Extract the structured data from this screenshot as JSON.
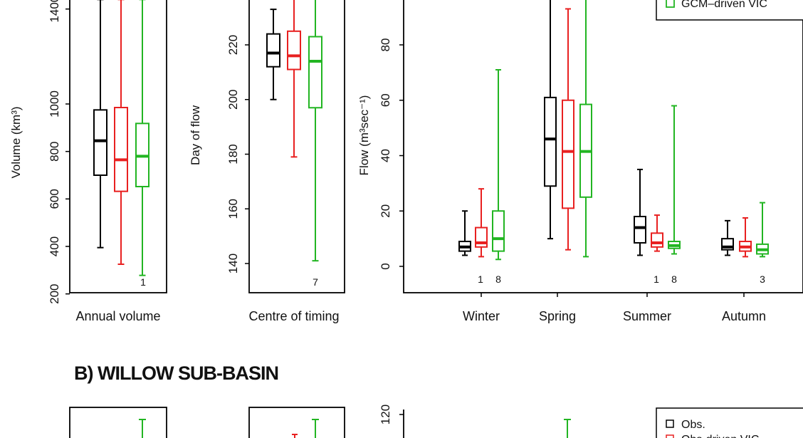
{
  "colors": {
    "obs": "#000000",
    "obs_vic": "#e82020",
    "gcm_vic": "#22b522"
  },
  "section_b_title": "B) WILLOW SUB-BASIN",
  "chart_data": [
    {
      "type": "box",
      "ylabel": "Volume (km³)",
      "yticks": [
        200,
        400,
        600,
        800,
        1000,
        1400
      ],
      "ylim": [
        200,
        1400
      ],
      "categories": [
        "Annual volume"
      ],
      "boxes": [
        {
          "series": "Obs.",
          "min": 395,
          "q1": 700,
          "median": 845,
          "q3": 975,
          "max": 1440
        },
        {
          "series": "Obs-driven VIC",
          "min": 325,
          "q1": 632,
          "median": 765,
          "q3": 985,
          "max": 1440
        },
        {
          "series": "GCM-driven VIC",
          "min": 278,
          "q1": 652,
          "median": 780,
          "q3": 918,
          "max": 1440
        }
      ],
      "annotations": [
        "1"
      ]
    },
    {
      "type": "box",
      "ylabel": "Day of flow",
      "yticks": [
        140,
        160,
        180,
        200,
        220
      ],
      "ylim": [
        135,
        245
      ],
      "categories": [
        "Centre of timing"
      ],
      "boxes": [
        {
          "series": "Obs.",
          "min": 200,
          "q1": 212,
          "median": 217,
          "q3": 224,
          "max": 233
        },
        {
          "series": "Obs-driven VIC",
          "min": 179,
          "q1": 211,
          "median": 216,
          "q3": 225,
          "max": 245
        },
        {
          "series": "GCM-driven VIC",
          "min": 141,
          "q1": 197,
          "median": 214,
          "q3": 223,
          "max": 245
        }
      ],
      "annotations": [
        "7"
      ]
    },
    {
      "type": "box",
      "ylabel": "Flow (m³sec⁻¹)",
      "yticks": [
        0,
        20,
        40,
        60,
        80
      ],
      "ylim": [
        -10,
        95
      ],
      "categories": [
        "Winter",
        "Spring",
        "Summer",
        "Autumn"
      ],
      "series": [
        "Obs.",
        "Obs-driven VIC",
        "GCM-driven VIC"
      ],
      "legend": {
        "position": "top-right",
        "entries": [
          "Obs.",
          "Obs-driven VIC",
          "GCM–driven VIC"
        ],
        "visible_entries": [
          "GCM–driven VIC"
        ]
      },
      "boxes": [
        {
          "category": "Winter",
          "series": "Obs.",
          "min": 4,
          "q1": 5.5,
          "median": 7,
          "q3": 9,
          "max": 20
        },
        {
          "category": "Winter",
          "series": "Obs-driven VIC",
          "min": 3.5,
          "q1": 7,
          "median": 8.5,
          "q3": 14,
          "max": 28
        },
        {
          "category": "Winter",
          "series": "GCM-driven VIC",
          "min": 2.5,
          "q1": 5.5,
          "median": 10,
          "q3": 20,
          "max": 71
        },
        {
          "category": "Spring",
          "series": "Obs.",
          "min": 10,
          "q1": 29,
          "median": 46,
          "q3": 61,
          "max": 97
        },
        {
          "category": "Spring",
          "series": "Obs-driven VIC",
          "min": 6,
          "q1": 21,
          "median": 41.5,
          "q3": 60,
          "max": 93
        },
        {
          "category": "Spring",
          "series": "GCM-driven VIC",
          "min": 3.5,
          "q1": 25,
          "median": 41.5,
          "q3": 58.5,
          "max": 97
        },
        {
          "category": "Summer",
          "series": "Obs.",
          "min": 4,
          "q1": 8.5,
          "median": 14,
          "q3": 18,
          "max": 35
        },
        {
          "category": "Summer",
          "series": "Obs-driven VIC",
          "min": 5.5,
          "q1": 7,
          "median": 8.5,
          "q3": 12,
          "max": 18.5
        },
        {
          "category": "Summer",
          "series": "GCM-driven VIC",
          "min": 4.5,
          "q1": 6.5,
          "median": 7.5,
          "q3": 9,
          "max": 58
        },
        {
          "category": "Autumn",
          "series": "Obs.",
          "min": 4,
          "q1": 6,
          "median": 7,
          "q3": 10,
          "max": 16.5
        },
        {
          "category": "Autumn",
          "series": "Obs-driven VIC",
          "min": 3.5,
          "q1": 5.5,
          "median": 7,
          "q3": 9,
          "max": 17.5
        },
        {
          "category": "Autumn",
          "series": "GCM-driven VIC",
          "min": 3.5,
          "q1": 4.5,
          "median": 6,
          "q3": 8,
          "max": 23
        }
      ],
      "annotations": [
        "1",
        "8",
        "1",
        "8",
        "3"
      ]
    },
    {
      "type": "box",
      "partial": true,
      "yticks": [
        120
      ],
      "legend": {
        "position": "top-right",
        "entries": [
          "Obs.",
          "Obs-driven VIC",
          "GCM–driven VIC"
        ],
        "visible_entries": [
          "Obs.",
          "Obs-driven VIC"
        ]
      }
    }
  ]
}
